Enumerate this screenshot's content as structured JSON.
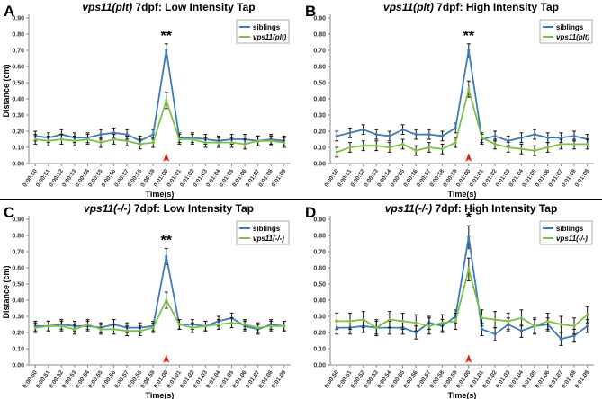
{
  "figure": {
    "divider_color": "#000000",
    "colors": {
      "siblings": "#3b7bbf",
      "mutant": "#7cc242",
      "arrow": "#e0201b",
      "axis": "#888888"
    }
  },
  "chart_data": [
    {
      "panel_label": "A",
      "type": "line",
      "title_italic": "vps11(plt)",
      "title_rest": " 7dpf: Low Intensity Tap",
      "xlabel": "Time(s)",
      "ylabel": "Distance (cm)",
      "ylim": [
        0,
        0.9
      ],
      "yticks": [
        "0.00",
        "0.10",
        "0.20",
        "0.30",
        "0.40",
        "0.50",
        "0.60",
        "0.70",
        "0.80",
        "0.90"
      ],
      "x": [
        "0:00:50",
        "0:00:51",
        "0:00:52",
        "0:00:53",
        "0:00:54",
        "0:00:55",
        "0:00:56",
        "0:00:57",
        "0:00:58",
        "0:00:59",
        "0:01:00",
        "0:01:01",
        "0:01:02",
        "0:01:03",
        "0:01:04",
        "0:01:05",
        "0:01:06",
        "0:01:07",
        "0:01:08",
        "0:01:09"
      ],
      "series": [
        {
          "name": "siblings",
          "values": [
            0.17,
            0.16,
            0.18,
            0.16,
            0.16,
            0.18,
            0.19,
            0.18,
            0.14,
            0.18,
            0.7,
            0.16,
            0.16,
            0.15,
            0.14,
            0.15,
            0.15,
            0.14,
            0.15,
            0.14
          ],
          "errors": [
            0.03,
            0.03,
            0.03,
            0.03,
            0.03,
            0.03,
            0.03,
            0.03,
            0.03,
            0.03,
            0.04,
            0.03,
            0.03,
            0.03,
            0.03,
            0.03,
            0.03,
            0.03,
            0.03,
            0.03
          ]
        },
        {
          "name": "vps11(plt)",
          "values": [
            0.15,
            0.14,
            0.15,
            0.14,
            0.15,
            0.13,
            0.15,
            0.14,
            0.12,
            0.13,
            0.39,
            0.15,
            0.15,
            0.13,
            0.13,
            0.13,
            0.12,
            0.14,
            0.14,
            0.13
          ],
          "errors": [
            0.03,
            0.03,
            0.03,
            0.03,
            0.03,
            0.03,
            0.03,
            0.03,
            0.03,
            0.03,
            0.05,
            0.03,
            0.03,
            0.03,
            0.03,
            0.03,
            0.03,
            0.03,
            0.03,
            0.03
          ]
        }
      ],
      "legend": "top-right",
      "significance": "**",
      "significance_x": "0:01:00",
      "stimulus_x": "0:01:00"
    },
    {
      "panel_label": "B",
      "type": "line",
      "title_italic": "vps11(plt)",
      "title_rest": " 7dpf: High Intensity Tap",
      "xlabel": "Time(s)",
      "ylabel": "",
      "ylim": [
        0,
        0.9
      ],
      "yticks": [
        "0.00",
        "0.10",
        "0.20",
        "0.30",
        "0.40",
        "0.50",
        "0.60",
        "0.70",
        "0.80",
        "0.90"
      ],
      "x": [
        "0:00:50",
        "0:00:51",
        "0:00:52",
        "0:00:53",
        "0:00:54",
        "0:00:55",
        "0:00:56",
        "0:00:57",
        "0:00:58",
        "0:00:59",
        "0:01:00",
        "0:01:01",
        "0:01:02",
        "0:01:03",
        "0:01:04",
        "0:01:05",
        "0:01:06",
        "0:01:07",
        "0:01:08",
        "0:01:09"
      ],
      "series": [
        {
          "name": "siblings",
          "values": [
            0.17,
            0.19,
            0.21,
            0.18,
            0.17,
            0.21,
            0.18,
            0.18,
            0.17,
            0.22,
            0.7,
            0.15,
            0.17,
            0.14,
            0.16,
            0.18,
            0.16,
            0.16,
            0.17,
            0.15
          ],
          "errors": [
            0.03,
            0.03,
            0.03,
            0.03,
            0.03,
            0.03,
            0.03,
            0.03,
            0.03,
            0.03,
            0.04,
            0.03,
            0.03,
            0.03,
            0.03,
            0.03,
            0.03,
            0.03,
            0.03,
            0.03
          ]
        },
        {
          "name": "vps11(plt)",
          "values": [
            0.07,
            0.1,
            0.11,
            0.11,
            0.1,
            0.12,
            0.08,
            0.1,
            0.09,
            0.13,
            0.46,
            0.16,
            0.12,
            0.1,
            0.09,
            0.08,
            0.1,
            0.12,
            0.12,
            0.12
          ],
          "errors": [
            0.03,
            0.03,
            0.03,
            0.03,
            0.03,
            0.03,
            0.03,
            0.03,
            0.03,
            0.03,
            0.05,
            0.03,
            0.03,
            0.03,
            0.03,
            0.03,
            0.03,
            0.03,
            0.03,
            0.03
          ]
        }
      ],
      "legend": "top-right",
      "significance": "**",
      "significance_x": "0:01:00",
      "stimulus_x": "0:01:00"
    },
    {
      "panel_label": "C",
      "type": "line",
      "title_italic": "vps11(-/-)",
      "title_rest": " 7dpf: Low Intensity Tap",
      "xlabel": "Time(s)",
      "ylabel": "Distance (cm)",
      "ylim": [
        0,
        0.9
      ],
      "yticks": [
        "0.00",
        "0.10",
        "0.20",
        "0.30",
        "0.40",
        "0.50",
        "0.60",
        "0.70",
        "0.80",
        "0.90"
      ],
      "x": [
        "0:00:50",
        "0:00:51",
        "0:00:52",
        "0:00:53",
        "0:00:54",
        "0:00:55",
        "0:00:56",
        "0:00:57",
        "0:00:58",
        "0:00:59",
        "0:01:00",
        "0:01:01",
        "0:01:02",
        "0:01:03",
        "0:01:04",
        "0:01:05",
        "0:01:06",
        "0:01:07",
        "0:01:08",
        "0:01:09"
      ],
      "series": [
        {
          "name": "siblings",
          "values": [
            0.24,
            0.24,
            0.25,
            0.24,
            0.24,
            0.23,
            0.25,
            0.23,
            0.23,
            0.24,
            0.67,
            0.25,
            0.25,
            0.24,
            0.27,
            0.29,
            0.24,
            0.22,
            0.25,
            0.24
          ],
          "errors": [
            0.03,
            0.03,
            0.03,
            0.03,
            0.03,
            0.03,
            0.03,
            0.03,
            0.03,
            0.03,
            0.05,
            0.03,
            0.03,
            0.03,
            0.03,
            0.03,
            0.03,
            0.03,
            0.03,
            0.03
          ]
        },
        {
          "name": "vps11(-/-)",
          "values": [
            0.23,
            0.24,
            0.24,
            0.22,
            0.25,
            0.22,
            0.22,
            0.21,
            0.21,
            0.23,
            0.4,
            0.25,
            0.23,
            0.24,
            0.25,
            0.26,
            0.25,
            0.23,
            0.24,
            0.24
          ],
          "errors": [
            0.03,
            0.03,
            0.03,
            0.03,
            0.03,
            0.03,
            0.03,
            0.03,
            0.03,
            0.03,
            0.05,
            0.03,
            0.03,
            0.03,
            0.03,
            0.03,
            0.03,
            0.03,
            0.03,
            0.03
          ]
        }
      ],
      "legend": "top-right",
      "significance": "**",
      "significance_x": "0:01:00",
      "stimulus_x": "0:01:00"
    },
    {
      "panel_label": "D",
      "type": "line",
      "title_italic": "vps11(-/-)",
      "title_rest": " 7dpf: High Intensity Tap",
      "xlabel": "Time(s)",
      "ylabel": "",
      "ylim": [
        0,
        0.9
      ],
      "yticks": [
        "0.00",
        "0.10",
        "0.20",
        "0.30",
        "0.40",
        "0.50",
        "0.60",
        "0.70",
        "0.80",
        "0.90"
      ],
      "x": [
        "0:00:50",
        "0:00:51",
        "0:00:52",
        "0:00:53",
        "0:00:54",
        "0:00:55",
        "0:00:56",
        "0:00:57",
        "0:00:58",
        "0:00:59",
        "0:01:00",
        "0:01:01",
        "0:01:02",
        "0:01:03",
        "0:01:04",
        "0:01:05",
        "0:01:06",
        "0:01:07",
        "0:01:08",
        "0:01:09"
      ],
      "series": [
        {
          "name": "siblings",
          "values": [
            0.23,
            0.23,
            0.24,
            0.23,
            0.23,
            0.23,
            0.2,
            0.26,
            0.24,
            0.3,
            0.79,
            0.22,
            0.19,
            0.25,
            0.21,
            0.24,
            0.25,
            0.16,
            0.18,
            0.24
          ],
          "errors": [
            0.04,
            0.04,
            0.04,
            0.04,
            0.04,
            0.04,
            0.04,
            0.04,
            0.04,
            0.04,
            0.07,
            0.04,
            0.04,
            0.04,
            0.04,
            0.04,
            0.04,
            0.04,
            0.04,
            0.04
          ]
        },
        {
          "name": "vps11(-/-)",
          "values": [
            0.27,
            0.27,
            0.28,
            0.23,
            0.28,
            0.27,
            0.26,
            0.24,
            0.26,
            0.27,
            0.59,
            0.29,
            0.28,
            0.27,
            0.29,
            0.24,
            0.27,
            0.25,
            0.24,
            0.31
          ],
          "errors": [
            0.05,
            0.05,
            0.05,
            0.05,
            0.05,
            0.05,
            0.05,
            0.05,
            0.05,
            0.05,
            0.07,
            0.05,
            0.05,
            0.05,
            0.05,
            0.05,
            0.05,
            0.05,
            0.05,
            0.05
          ]
        }
      ],
      "legend": "top-right",
      "significance": "*",
      "significance_x": "0:01:00",
      "stimulus_x": "0:01:00"
    }
  ]
}
